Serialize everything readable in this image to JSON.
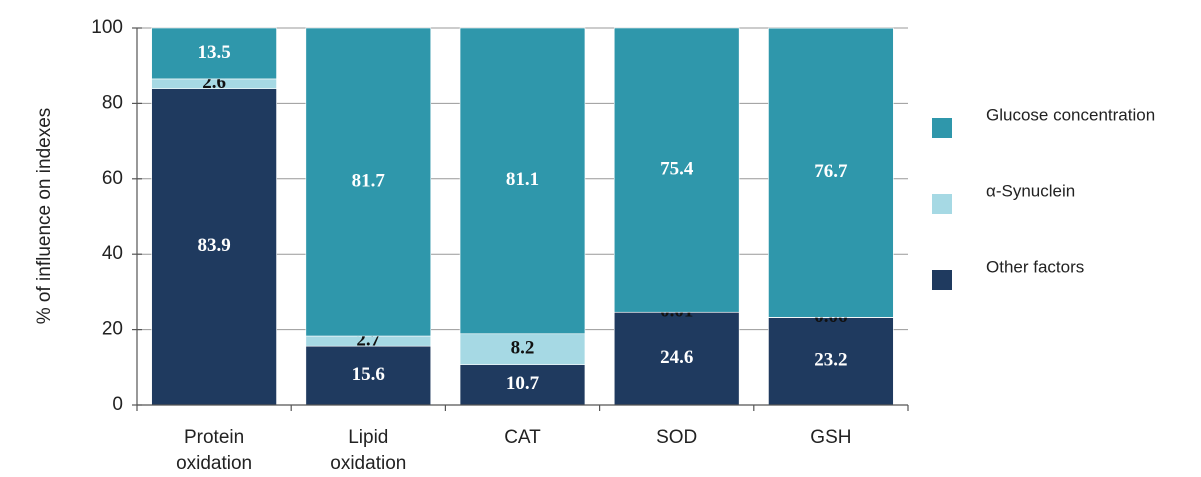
{
  "chart_data": {
    "type": "stacked_bar",
    "y_label": "% of influence on indexes",
    "categories": [
      "Protein oxidation",
      "Lipid oxidation",
      "CAT",
      "SOD",
      "GSH"
    ],
    "series": [
      {
        "name": "Other factors",
        "color": "#1f3a5f",
        "values": [
          83.9,
          15.6,
          10.7,
          24.6,
          23.2
        ]
      },
      {
        "name": "α-Synuclein",
        "color": "#a6d9e4",
        "values": [
          2.6,
          2.7,
          8.2,
          0.01,
          0.06
        ]
      },
      {
        "name": "Glucose concentration",
        "color": "#2f97ab",
        "values": [
          13.5,
          81.7,
          81.1,
          75.4,
          76.7
        ]
      }
    ],
    "ylim": [
      0,
      100
    ],
    "yticks": [
      0,
      20,
      40,
      60,
      80,
      100
    ],
    "grid": true,
    "legend": "right"
  }
}
